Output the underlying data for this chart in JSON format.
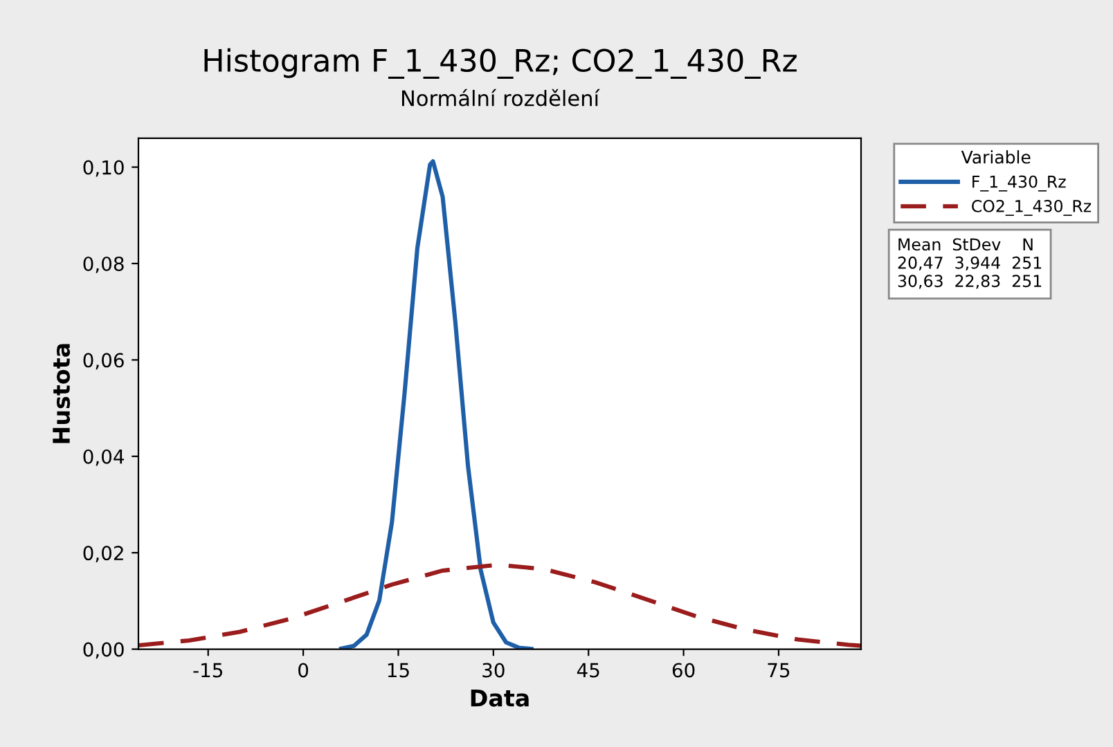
{
  "chart_data": {
    "type": "line",
    "title": "Histogram F_1_430_Rz; CO2_1_430_Rz",
    "subtitle": "Normální rozdělení",
    "xlabel": "Data",
    "ylabel": "Hustota",
    "legend_title": "Variable",
    "legend": "right",
    "series": [
      {
        "name": "F_1_430_Rz",
        "color": "#1f5fa8",
        "line_style": "solid",
        "x": [
          6,
          8,
          10,
          12,
          14,
          16,
          18,
          20,
          20.47,
          22,
          24,
          26,
          28,
          30,
          32,
          34,
          36
        ],
        "values": [
          0.00012,
          0.00068,
          0.003,
          0.0101,
          0.0264,
          0.0533,
          0.0832,
          0.1005,
          0.1012,
          0.0938,
          0.0678,
          0.0379,
          0.0164,
          0.0055,
          0.0014,
          0.0003,
          4e-05
        ]
      },
      {
        "name": "CO2_1_430_Rz",
        "color": "#9b1c1c",
        "line_style": "dashed",
        "x": [
          -26,
          -18,
          -10,
          -2,
          6,
          14,
          22,
          30.63,
          38,
          46,
          54,
          62,
          70,
          78,
          86,
          88
        ],
        "values": [
          0.0008,
          0.0018,
          0.0036,
          0.0063,
          0.0098,
          0.0134,
          0.0163,
          0.0175,
          0.0166,
          0.0139,
          0.0104,
          0.0068,
          0.004,
          0.002,
          0.0009,
          0.0007
        ]
      }
    ],
    "xlim": [
      -26,
      88
    ],
    "xticks": [
      -15,
      0,
      15,
      30,
      45,
      60,
      75
    ],
    "ylim": [
      0,
      0.106
    ],
    "yticks": [
      {
        "value": 0,
        "label": "0,00"
      },
      {
        "value": 0.02,
        "label": "0,02"
      },
      {
        "value": 0.04,
        "label": "0,04"
      },
      {
        "value": 0.06,
        "label": "0,06"
      },
      {
        "value": 0.08,
        "label": "0,08"
      },
      {
        "value": 0.1,
        "label": "0,10"
      }
    ],
    "grid": false,
    "annotations": [
      "Mean  StDev    N",
      "20,47  3,944  251",
      "30,63  22,83  251"
    ]
  }
}
